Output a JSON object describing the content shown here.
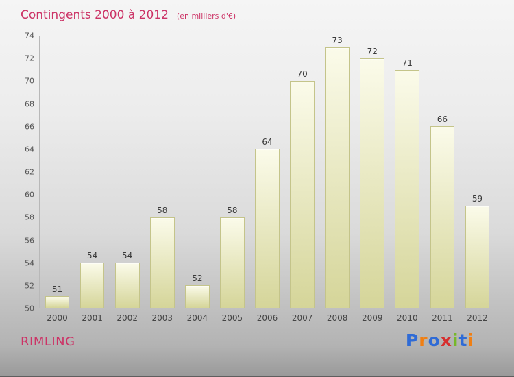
{
  "header": {
    "title": "Contingents 2000 à 2012",
    "subtitle": "(en milliers d'€)"
  },
  "chart_data": {
    "type": "bar",
    "categories": [
      "2000",
      "2001",
      "2002",
      "2003",
      "2004",
      "2005",
      "2006",
      "2007",
      "2008",
      "2009",
      "2010",
      "2011",
      "2012"
    ],
    "values": [
      51,
      54,
      54,
      58,
      52,
      58,
      64,
      70,
      73,
      72,
      71,
      66,
      59
    ],
    "title": "Contingents 2000 à 2012",
    "xlabel": "",
    "ylabel": "",
    "ylim": [
      50,
      74
    ],
    "ytick_step": 2,
    "grid": false,
    "legend": false
  },
  "footer": {
    "left_label": "RIMLING",
    "logo": {
      "letters": [
        {
          "ch": "P",
          "color": "#2f6bd6"
        },
        {
          "ch": "r",
          "color": "#f07f13"
        },
        {
          "ch": "o",
          "color": "#2f6bd6"
        },
        {
          "ch": "x",
          "color": "#d62f2f"
        },
        {
          "ch": "i",
          "color": "#76b82a"
        },
        {
          "ch": "t",
          "color": "#2f6bd6"
        },
        {
          "ch": "i",
          "color": "#f07f13"
        }
      ]
    }
  },
  "colors": {
    "accent_pink": "#cc3366",
    "bar_top": "#fbfbea",
    "bar_bottom": "#d5d599",
    "bar_border": "#c4c48a"
  }
}
